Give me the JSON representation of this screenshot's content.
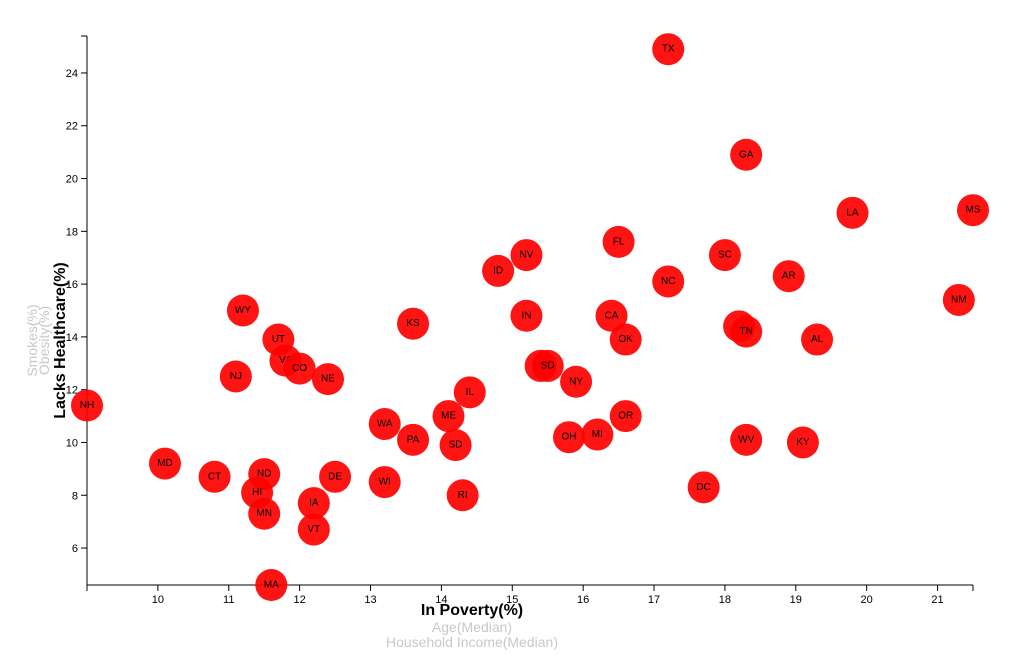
{
  "chart_data": {
    "type": "scatter",
    "x_axis": {
      "labels": [
        "In Poverty(%)",
        "Age(Median)",
        "Household Income(Median)"
      ],
      "active": "In Poverty(%)",
      "range": [
        9,
        21.5
      ],
      "ticks": [
        10,
        11,
        12,
        13,
        14,
        15,
        16,
        17,
        18,
        19,
        20,
        21
      ]
    },
    "y_axis": {
      "labels": [
        "Lacks Healthcare(%)",
        "Obesity(%)",
        "Smokes(%)"
      ],
      "active": "Lacks Healthcare(%)",
      "range": [
        4.6,
        25.4
      ],
      "ticks": [
        6,
        8,
        10,
        12,
        14,
        16,
        18,
        20,
        22,
        24
      ]
    },
    "marker_color": "#ff0000",
    "points": [
      {
        "abbr": "TX",
        "x": 17.2,
        "y": 24.9
      },
      {
        "abbr": "GA",
        "x": 18.3,
        "y": 20.9
      },
      {
        "abbr": "MS",
        "x": 21.5,
        "y": 18.8
      },
      {
        "abbr": "LA",
        "x": 19.8,
        "y": 18.7
      },
      {
        "abbr": "FL",
        "x": 16.5,
        "y": 17.6
      },
      {
        "abbr": "NV",
        "x": 15.2,
        "y": 17.1
      },
      {
        "abbr": "SC",
        "x": 18.0,
        "y": 17.1
      },
      {
        "abbr": "ID",
        "x": 14.8,
        "y": 16.5
      },
      {
        "abbr": "AR",
        "x": 18.9,
        "y": 16.3
      },
      {
        "abbr": "NC",
        "x": 17.2,
        "y": 16.1
      },
      {
        "abbr": "NM",
        "x": 21.3,
        "y": 15.4
      },
      {
        "abbr": "WY",
        "x": 11.2,
        "y": 15.0
      },
      {
        "abbr": "IN",
        "x": 15.2,
        "y": 14.8
      },
      {
        "abbr": "CA",
        "x": 16.4,
        "y": 14.8
      },
      {
        "abbr": "KS",
        "x": 13.6,
        "y": 14.5
      },
      {
        "abbr": "AZ",
        "x": 18.2,
        "y": 14.4
      },
      {
        "abbr": "TN",
        "x": 18.3,
        "y": 14.2
      },
      {
        "abbr": "UT",
        "x": 11.7,
        "y": 13.9
      },
      {
        "abbr": "OK",
        "x": 16.6,
        "y": 13.9
      },
      {
        "abbr": "AL",
        "x": 19.3,
        "y": 13.9
      },
      {
        "abbr": "VA",
        "x": 11.8,
        "y": 13.1
      },
      {
        "abbr": "MT",
        "x": 15.4,
        "y": 12.9
      },
      {
        "abbr": "SD",
        "x": 15.5,
        "y": 12.9
      },
      {
        "abbr": "CO",
        "x": 12.0,
        "y": 12.8
      },
      {
        "abbr": "NJ",
        "x": 11.1,
        "y": 12.5
      },
      {
        "abbr": "NE",
        "x": 12.4,
        "y": 12.4
      },
      {
        "abbr": "NY",
        "x": 15.9,
        "y": 12.3
      },
      {
        "abbr": "IL",
        "x": 14.4,
        "y": 11.9
      },
      {
        "abbr": "NH",
        "x": 9.0,
        "y": 11.4
      },
      {
        "abbr": "ME",
        "x": 14.1,
        "y": 11.0
      },
      {
        "abbr": "OR",
        "x": 16.6,
        "y": 11.0
      },
      {
        "abbr": "WA",
        "x": 13.2,
        "y": 10.7
      },
      {
        "abbr": "MI",
        "x": 16.2,
        "y": 10.3
      },
      {
        "abbr": "OH",
        "x": 15.8,
        "y": 10.2
      },
      {
        "abbr": "WV",
        "x": 18.3,
        "y": 10.1
      },
      {
        "abbr": "PA",
        "x": 13.6,
        "y": 10.1
      },
      {
        "abbr": "KY",
        "x": 19.1,
        "y": 10.0
      },
      {
        "abbr": "SD",
        "x": 14.2,
        "y": 9.9
      },
      {
        "abbr": "MD",
        "x": 10.1,
        "y": 9.2
      },
      {
        "abbr": "CT",
        "x": 10.8,
        "y": 8.7
      },
      {
        "abbr": "ND",
        "x": 11.5,
        "y": 8.8
      },
      {
        "abbr": "DE",
        "x": 12.5,
        "y": 8.7
      },
      {
        "abbr": "WI",
        "x": 13.2,
        "y": 8.5
      },
      {
        "abbr": "DC",
        "x": 17.7,
        "y": 8.3
      },
      {
        "abbr": "HI",
        "x": 11.4,
        "y": 8.1
      },
      {
        "abbr": "RI",
        "x": 14.3,
        "y": 8.0
      },
      {
        "abbr": "IA",
        "x": 12.2,
        "y": 7.7
      },
      {
        "abbr": "MN",
        "x": 11.5,
        "y": 7.3
      },
      {
        "abbr": "VT",
        "x": 12.2,
        "y": 6.7
      },
      {
        "abbr": "MA",
        "x": 11.6,
        "y": 4.6
      }
    ]
  }
}
